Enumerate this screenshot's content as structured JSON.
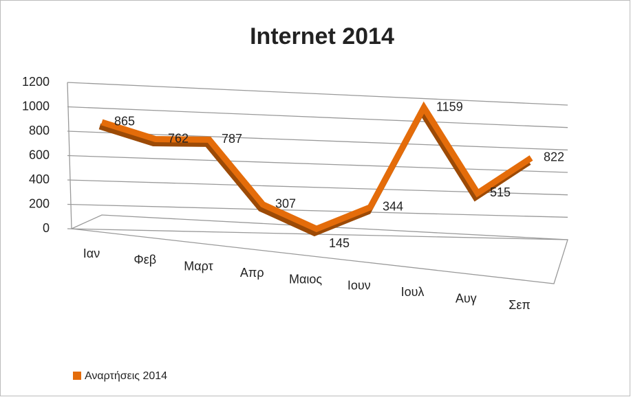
{
  "chart_data": {
    "type": "line",
    "title": "Internet 2014",
    "categories": [
      "Ιαν",
      "Φεβ",
      "Μαρτ",
      "Απρ",
      "Μαιος",
      "Ιουν",
      "Ιουλ",
      "Αυγ",
      "Σεπ"
    ],
    "series": [
      {
        "name": "Αναρτήσεις 2014",
        "color": "#e46c0a",
        "values": [
          865,
          762,
          787,
          307,
          145,
          344,
          1159,
          515,
          822
        ]
      }
    ],
    "ylim": [
      0,
      1200
    ],
    "yticks": [
      0,
      200,
      400,
      600,
      800,
      1000,
      1200
    ],
    "grid": true,
    "legend": "bottom-left"
  }
}
